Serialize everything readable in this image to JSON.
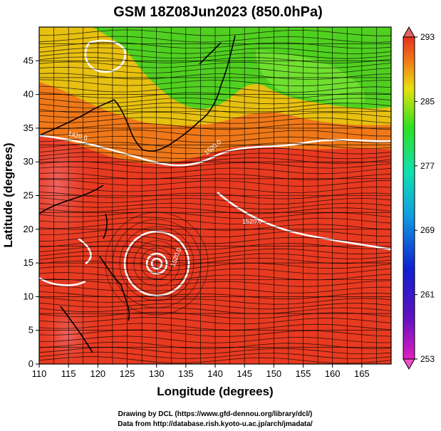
{
  "title": "GSM 18Z08Jun2023 (850.0hPa)",
  "xlabel": "Longitude (degrees)",
  "ylabel": "Latitude  (degrees)",
  "x_ticks": [
    "110",
    "115",
    "120",
    "125",
    "130",
    "135",
    "140",
    "145",
    "150",
    "155",
    "160",
    "165"
  ],
  "y_ticks": [
    "0",
    "5",
    "10",
    "15",
    "20",
    "25",
    "30",
    "35",
    "40",
    "45"
  ],
  "colorbar_ticks": [
    "293",
    "285",
    "277",
    "269",
    "261",
    "253"
  ],
  "contour_labels": [
    "1420.0",
    "1520.0",
    "1520.0",
    "1520.0"
  ],
  "credits": [
    "Drawing by DCL (https://www.gfd-dennou.org/library/dcl/)",
    "Data from http://database.rish.kyoto-u.ac.jp/arch/jmadata/"
  ],
  "map": {
    "extent": {
      "lon": [
        110,
        170
      ],
      "lat": [
        0,
        50
      ]
    },
    "colorbar_range": [
      253,
      293
    ],
    "colors": {
      "warm": "#e83a20",
      "hot": "#e85a5a",
      "orange": "#f07818",
      "yellow": "#e8d010",
      "green": "#50d020",
      "coast": "#000000",
      "contour": "#ffffff"
    }
  }
}
